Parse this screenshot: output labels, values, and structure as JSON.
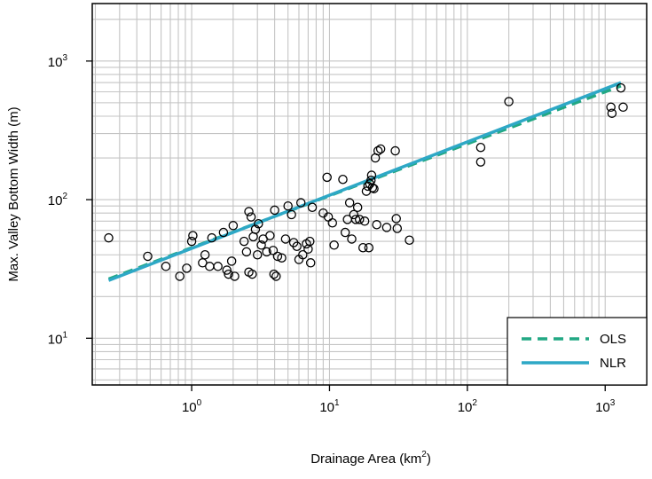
{
  "chart_data": {
    "type": "scatter",
    "xlabel": "Drainage Area (km",
    "xlabel_sup": "2",
    "xlabel_close": ")",
    "ylabel": "Max. Valley Bottom Width (m)",
    "x_scale": "log",
    "y_scale": "log",
    "xlim": [
      0.19,
      2000
    ],
    "ylim": [
      4.6,
      2600
    ],
    "grid": true,
    "x_ticks": [
      {
        "value": 1,
        "base": "10",
        "exp": "0"
      },
      {
        "value": 10,
        "base": "10",
        "exp": "1"
      },
      {
        "value": 100,
        "base": "10",
        "exp": "2"
      },
      {
        "value": 1000,
        "base": "10",
        "exp": "3"
      }
    ],
    "y_ticks": [
      {
        "value": 10,
        "base": "10",
        "exp": "1"
      },
      {
        "value": 100,
        "base": "10",
        "exp": "2"
      },
      {
        "value": 1000,
        "base": "10",
        "exp": "3"
      }
    ],
    "legend_position": "bottom-right",
    "series": [
      {
        "kind": "points",
        "marker": "open-circle",
        "color": "#000000",
        "points": [
          [
            0.25,
            53
          ],
          [
            0.48,
            39
          ],
          [
            0.65,
            33
          ],
          [
            0.82,
            28
          ],
          [
            0.92,
            32
          ],
          [
            1.0,
            50
          ],
          [
            1.02,
            55
          ],
          [
            1.2,
            35
          ],
          [
            1.25,
            40
          ],
          [
            1.35,
            33
          ],
          [
            1.4,
            53
          ],
          [
            1.55,
            33
          ],
          [
            1.7,
            58
          ],
          [
            1.8,
            31
          ],
          [
            1.85,
            29
          ],
          [
            1.95,
            36
          ],
          [
            2.0,
            65
          ],
          [
            2.05,
            28
          ],
          [
            2.4,
            50
          ],
          [
            2.5,
            42
          ],
          [
            2.6,
            30
          ],
          [
            2.6,
            82
          ],
          [
            2.7,
            75
          ],
          [
            2.75,
            29
          ],
          [
            2.8,
            54
          ],
          [
            2.9,
            61
          ],
          [
            3.0,
            40
          ],
          [
            3.05,
            67
          ],
          [
            3.2,
            47
          ],
          [
            3.3,
            52
          ],
          [
            3.5,
            42
          ],
          [
            3.7,
            55
          ],
          [
            3.9,
            43
          ],
          [
            3.95,
            29
          ],
          [
            4.0,
            84
          ],
          [
            4.1,
            28
          ],
          [
            4.2,
            39
          ],
          [
            4.5,
            38
          ],
          [
            4.8,
            52
          ],
          [
            5.0,
            90
          ],
          [
            5.3,
            78
          ],
          [
            5.5,
            49
          ],
          [
            5.8,
            46
          ],
          [
            6.0,
            37
          ],
          [
            6.2,
            95
          ],
          [
            6.4,
            40
          ],
          [
            6.8,
            48
          ],
          [
            7.0,
            44
          ],
          [
            7.2,
            50
          ],
          [
            7.3,
            35
          ],
          [
            7.5,
            88
          ],
          [
            9.0,
            80
          ],
          [
            9.6,
            145
          ],
          [
            9.8,
            75
          ],
          [
            10.5,
            68
          ],
          [
            10.8,
            47
          ],
          [
            12.5,
            140
          ],
          [
            13.0,
            58
          ],
          [
            13.5,
            72
          ],
          [
            14.0,
            95
          ],
          [
            14.5,
            52
          ],
          [
            15.0,
            78
          ],
          [
            15.5,
            72
          ],
          [
            16.0,
            88
          ],
          [
            16.5,
            72
          ],
          [
            17.5,
            45
          ],
          [
            18.0,
            70
          ],
          [
            18.5,
            115
          ],
          [
            19.0,
            125
          ],
          [
            19.3,
            45
          ],
          [
            19.6,
            130
          ],
          [
            20.0,
            138
          ],
          [
            20.2,
            150
          ],
          [
            20.5,
            122
          ],
          [
            21.0,
            120
          ],
          [
            21.5,
            200
          ],
          [
            22.0,
            66
          ],
          [
            22.5,
            225
          ],
          [
            23.5,
            232
          ],
          [
            26.0,
            63
          ],
          [
            30.0,
            225
          ],
          [
            30.5,
            73
          ],
          [
            31.0,
            62
          ],
          [
            38.0,
            51
          ],
          [
            125,
            238
          ],
          [
            125,
            187
          ],
          [
            200,
            510
          ],
          [
            1100,
            465
          ],
          [
            1120,
            420
          ],
          [
            1300,
            640
          ],
          [
            1350,
            465
          ]
        ]
      },
      {
        "kind": "line",
        "name": "OLS",
        "color": "#22a884",
        "dash": "dashed",
        "x_range": [
          0.25,
          1300
        ],
        "intercept": 45,
        "slope": 0.375
      },
      {
        "kind": "line",
        "name": "NLR",
        "color": "#2ea8c6",
        "dash": "solid",
        "x_range": [
          0.25,
          1300
        ],
        "intercept": 44.5,
        "slope": 0.384
      }
    ]
  }
}
